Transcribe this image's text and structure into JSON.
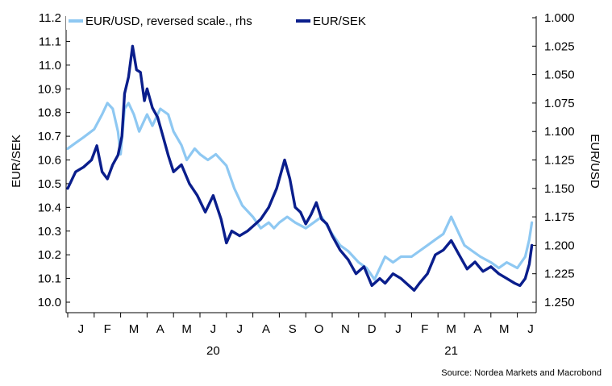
{
  "chart_data": {
    "type": "line",
    "legend": {
      "placement": "top-left",
      "entries": [
        "EUR/USD, reversed scale., rhs",
        "EUR/SEK"
      ]
    },
    "ylabel_left": "EUR/SEK",
    "ylabel_right": "EUR/USD",
    "ylim_left": [
      10.0,
      11.2
    ],
    "ylim_right_reversed": [
      1.0,
      1.25
    ],
    "yticks_left": [
      "10.0",
      "10.1",
      "10.2",
      "10.3",
      "10.4",
      "10.5",
      "10.6",
      "10.7",
      "10.8",
      "10.9",
      "11.0",
      "11.1",
      "11.2"
    ],
    "yticks_right": [
      "1.000",
      "1.025",
      "1.050",
      "1.075",
      "1.100",
      "1.125",
      "1.150",
      "1.175",
      "1.200",
      "1.225",
      "1.250"
    ],
    "xticks": [
      "J",
      "F",
      "M",
      "A",
      "M",
      "J",
      "J",
      "A",
      "S",
      "O",
      "N",
      "D",
      "J",
      "F",
      "M",
      "A",
      "M",
      "J"
    ],
    "year_labels": [
      {
        "label": "20",
        "month_index": 5.5
      },
      {
        "label": "21",
        "month_index": 14.5
      }
    ],
    "x_range_months": [
      0,
      17.6
    ],
    "grid": false,
    "series": [
      {
        "name": "EUR/USD, reversed scale., rhs",
        "axis": "right",
        "color": "#8ec8f2",
        "x": [
          0,
          0.3,
          0.6,
          1.0,
          1.3,
          1.5,
          1.7,
          1.9,
          2.0,
          2.15,
          2.3,
          2.5,
          2.7,
          2.9,
          3.0,
          3.2,
          3.5,
          3.8,
          4.0,
          4.3,
          4.5,
          4.8,
          5.0,
          5.3,
          5.6,
          6.0,
          6.3,
          6.6,
          7.0,
          7.3,
          7.6,
          7.8,
          8.0,
          8.3,
          8.6,
          9.0,
          9.3,
          9.6,
          10.0,
          10.3,
          10.6,
          11.0,
          11.3,
          11.6,
          12.0,
          12.3,
          12.6,
          13.0,
          13.3,
          13.6,
          13.9,
          14.2,
          14.5,
          14.8,
          15.0,
          15.3,
          15.6,
          16.0,
          16.3,
          16.6,
          17.0,
          17.3,
          17.45,
          17.55
        ],
        "values": [
          1.115,
          1.11,
          1.105,
          1.098,
          1.085,
          1.075,
          1.08,
          1.1,
          1.12,
          1.08,
          1.075,
          1.085,
          1.1,
          1.09,
          1.085,
          1.095,
          1.08,
          1.085,
          1.1,
          1.112,
          1.125,
          1.115,
          1.12,
          1.125,
          1.12,
          1.13,
          1.15,
          1.165,
          1.175,
          1.185,
          1.18,
          1.185,
          1.18,
          1.175,
          1.18,
          1.185,
          1.18,
          1.175,
          1.19,
          1.2,
          1.205,
          1.215,
          1.22,
          1.23,
          1.21,
          1.215,
          1.21,
          1.21,
          1.205,
          1.2,
          1.195,
          1.19,
          1.175,
          1.19,
          1.2,
          1.205,
          1.21,
          1.215,
          1.22,
          1.215,
          1.22,
          1.21,
          1.195,
          1.18
        ]
      },
      {
        "name": "EUR/SEK",
        "axis": "left",
        "color": "#0a1e8c",
        "x": [
          0,
          0.3,
          0.6,
          0.9,
          1.1,
          1.3,
          1.5,
          1.7,
          1.9,
          2.05,
          2.15,
          2.3,
          2.45,
          2.6,
          2.75,
          2.9,
          3.0,
          3.2,
          3.4,
          3.6,
          3.8,
          4.0,
          4.3,
          4.6,
          4.9,
          5.2,
          5.5,
          5.8,
          6.0,
          6.2,
          6.5,
          6.8,
          7.0,
          7.3,
          7.6,
          7.9,
          8.2,
          8.4,
          8.6,
          8.8,
          9.0,
          9.2,
          9.4,
          9.6,
          9.8,
          10.0,
          10.3,
          10.6,
          10.9,
          11.2,
          11.5,
          11.8,
          12.0,
          12.3,
          12.6,
          12.9,
          13.1,
          13.3,
          13.6,
          13.9,
          14.2,
          14.5,
          14.8,
          15.1,
          15.4,
          15.7,
          16.0,
          16.3,
          16.6,
          16.9,
          17.1,
          17.3,
          17.45,
          17.55
        ],
        "values": [
          10.48,
          10.55,
          10.57,
          10.6,
          10.66,
          10.55,
          10.52,
          10.58,
          10.62,
          10.7,
          10.88,
          10.95,
          11.08,
          10.98,
          10.97,
          10.85,
          10.9,
          10.82,
          10.78,
          10.7,
          10.62,
          10.55,
          10.58,
          10.5,
          10.45,
          10.38,
          10.45,
          10.35,
          10.25,
          10.3,
          10.28,
          10.3,
          10.32,
          10.35,
          10.4,
          10.48,
          10.6,
          10.52,
          10.4,
          10.38,
          10.33,
          10.37,
          10.42,
          10.35,
          10.33,
          10.28,
          10.22,
          10.18,
          10.12,
          10.15,
          10.07,
          10.1,
          10.08,
          10.12,
          10.1,
          10.07,
          10.05,
          10.08,
          10.12,
          10.2,
          10.22,
          10.26,
          10.2,
          10.14,
          10.17,
          10.13,
          10.15,
          10.12,
          10.1,
          10.08,
          10.07,
          10.1,
          10.16,
          10.24
        ]
      }
    ]
  },
  "source": "Source: Nordea Markets and Macrobond"
}
